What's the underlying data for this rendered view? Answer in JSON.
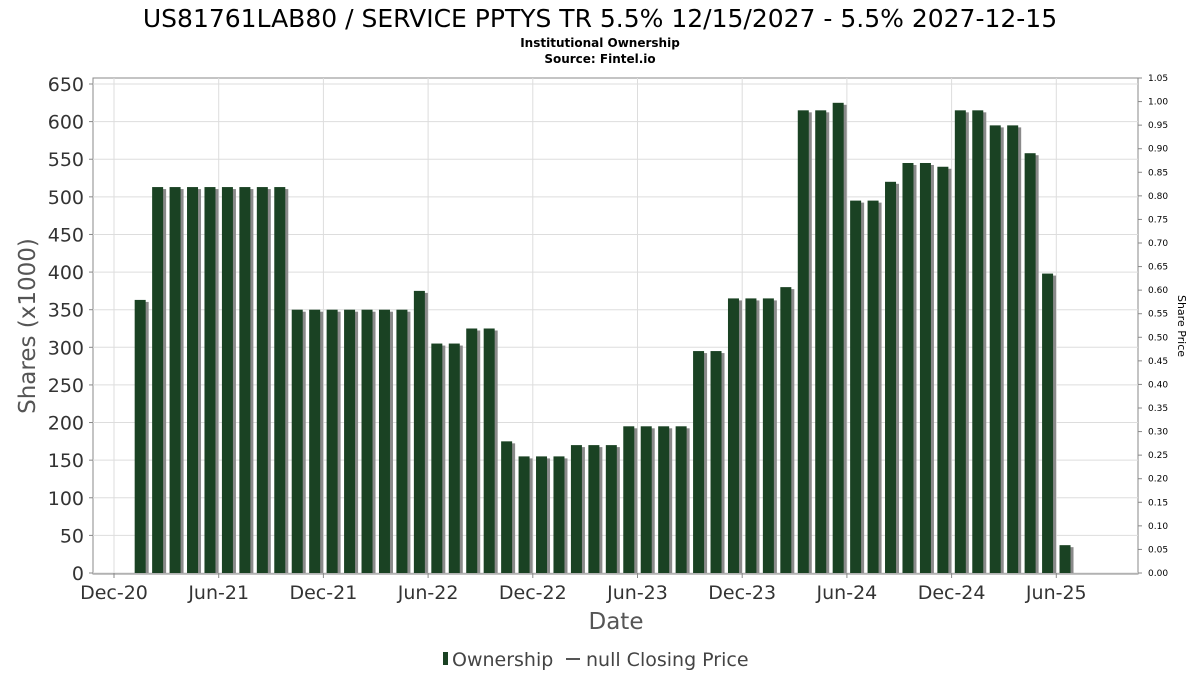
{
  "title": "US81761LAB80 / SERVICE PPTYS TR 5.5% 12/15/2027 - 5.5% 2027-12-15",
  "subtitle1": "Institutional Ownership",
  "subtitle2": "Source: Fintel.io",
  "colors": {
    "bar": "#1a4223",
    "shadow": "#8a8a8a",
    "grid": "#dddddd",
    "axis": "#888888",
    "line": "#555555"
  },
  "legend": {
    "ownership": "Ownership",
    "price": "null Closing Price"
  },
  "chart_data": {
    "type": "bar",
    "title": "US81761LAB80 / SERVICE PPTYS TR 5.5% 12/15/2027 - 5.5% 2027-12-15",
    "xlabel": "Date",
    "ylabel": "Shares (x1000)",
    "y2label": "Share Price",
    "ylim": [
      0,
      650
    ],
    "y2lim": [
      0,
      1.05
    ],
    "yticks": [
      "0",
      "50",
      "100",
      "150",
      "200",
      "250",
      "300",
      "350",
      "400",
      "450",
      "500",
      "550",
      "600",
      "650"
    ],
    "y2ticks": [
      "0.00",
      "0.05",
      "0.10",
      "0.15",
      "0.20",
      "0.25",
      "0.30",
      "0.35",
      "0.40",
      "0.45",
      "0.50",
      "0.55",
      "0.60",
      "0.65",
      "0.70",
      "0.75",
      "0.80",
      "0.85",
      "0.90",
      "0.95",
      "1.00",
      "1.05"
    ],
    "xticks": [
      {
        "label": "Dec-20",
        "month": 0
      },
      {
        "label": "Jun-21",
        "month": 6
      },
      {
        "label": "Dec-21",
        "month": 12
      },
      {
        "label": "Jun-22",
        "month": 18
      },
      {
        "label": "Dec-22",
        "month": 24
      },
      {
        "label": "Jun-23",
        "month": 30
      },
      {
        "label": "Dec-23",
        "month": 36
      },
      {
        "label": "Jun-24",
        "month": 42
      },
      {
        "label": "Dec-24",
        "month": 48
      },
      {
        "label": "Jun-25",
        "month": 54
      }
    ],
    "series": [
      {
        "name": "Ownership",
        "start_month": 1.5,
        "step_months": 1,
        "values": [
          363,
          513,
          513,
          513,
          513,
          513,
          513,
          513,
          513,
          350,
          350,
          350,
          350,
          350,
          350,
          350,
          375,
          305,
          305,
          325,
          325,
          175,
          155,
          155,
          155,
          170,
          170,
          170,
          195,
          195,
          195,
          195,
          295,
          295,
          365,
          365,
          365,
          380,
          615,
          615,
          625,
          495,
          495,
          520,
          545,
          545,
          540,
          615,
          615,
          595,
          595,
          558,
          398,
          37
        ]
      }
    ]
  }
}
